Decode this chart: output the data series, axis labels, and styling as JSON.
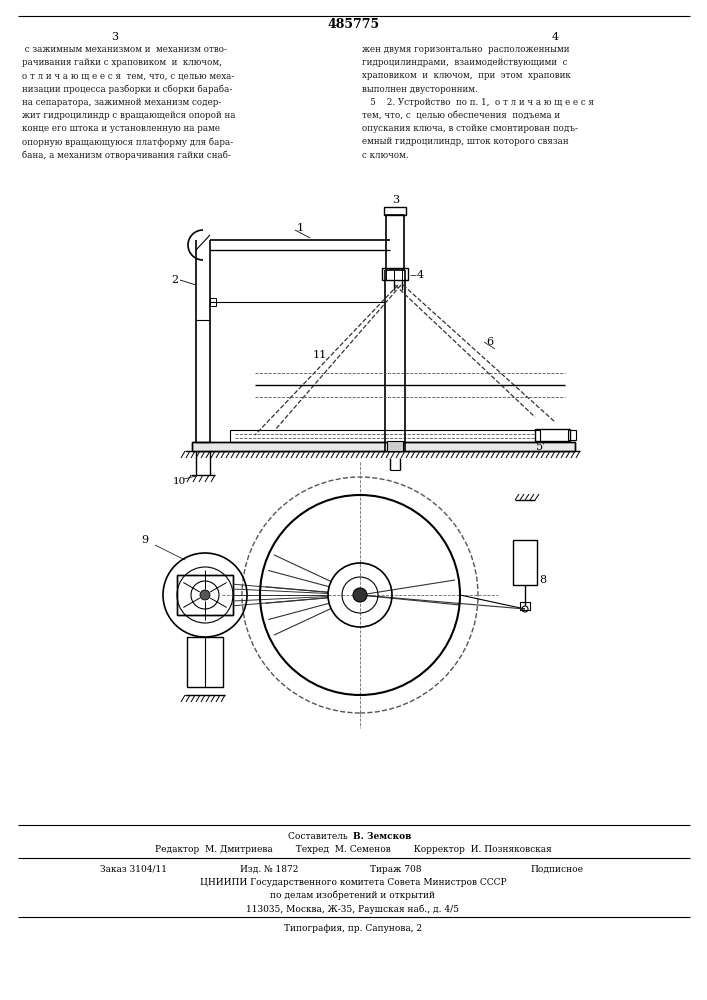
{
  "bg_color": "#ffffff",
  "page_number_center": "485775",
  "page_left": "3",
  "page_right": "4",
  "text_left": " с зажимным механизмом и  механизм отво-\nрачивания гайки с храповиком  и  ключом,\nо т л и ч а ю щ е е с я  тем, что, с целью меха-\nнизации процесса разборки и сборки бараба-\nна сепаратора, зажимной механизм содер-\nжит гидроцилиндр с вращающейся опорой на\nконце его штока и установленную на раме\nопорную вращающуюся платформу для бара-\nбана, а механизм отворачивания гайки снаб-",
  "text_right": "жен двумя горизонтально  расположенными\nгидроцилиндрами,  взаимодействующими  с\nхраповиком  и  ключом,  при  этом  храповик\nвыполнен двусторонним.\n   5    2. Устройство  по п. 1,  о т л и ч а ю щ е е с я\nтем, что, с  целью обеспечения  подъема и\nопускания ключа, в стойке смонтирован подъ-\nемный гидроцилиндр, шток которого связан\nс ключом.",
  "footer_composer": "Составитель  В. Земсков",
  "footer_editor": "Редактор  М. Дмитриева",
  "footer_techred": "Техред  М. Семенов",
  "footer_corrector": "Корректор  И. Позняковская",
  "footer_order": "Заказ 3104/11",
  "footer_izd": "Изд. № 1872",
  "footer_tirazh": "Тираж 708",
  "footer_podp": "Подписное",
  "footer_org": "ЦНИИПИ Государственного комитета Совета Министров СССР",
  "footer_dept": "по делам изобретений и открытий",
  "footer_addr": "113035, Москва, Ж-35, Раушская наб., д. 4/5",
  "footer_typo": "Типография, пр. Сапунова, 2",
  "line_color": "#000000"
}
